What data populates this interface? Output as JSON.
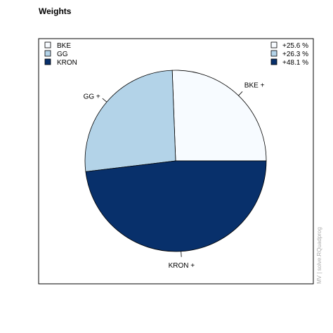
{
  "chart_data": {
    "type": "pie",
    "title": "Weights",
    "categories": [
      "BKE",
      "GG",
      "KRON"
    ],
    "values": [
      25.6,
      26.3,
      48.1
    ],
    "slice_labels": [
      "BKE +",
      "GG +",
      "KRON +"
    ],
    "percent_labels": [
      "+25.6 %",
      "+26.3 %",
      "+48.1 %"
    ],
    "colors": [
      "#f7fbff",
      "#b3d3e8",
      "#08306b"
    ],
    "legend_left_position": "top-left",
    "legend_right_position": "top-right",
    "side_note": "MV | solve.RQuadprog"
  }
}
